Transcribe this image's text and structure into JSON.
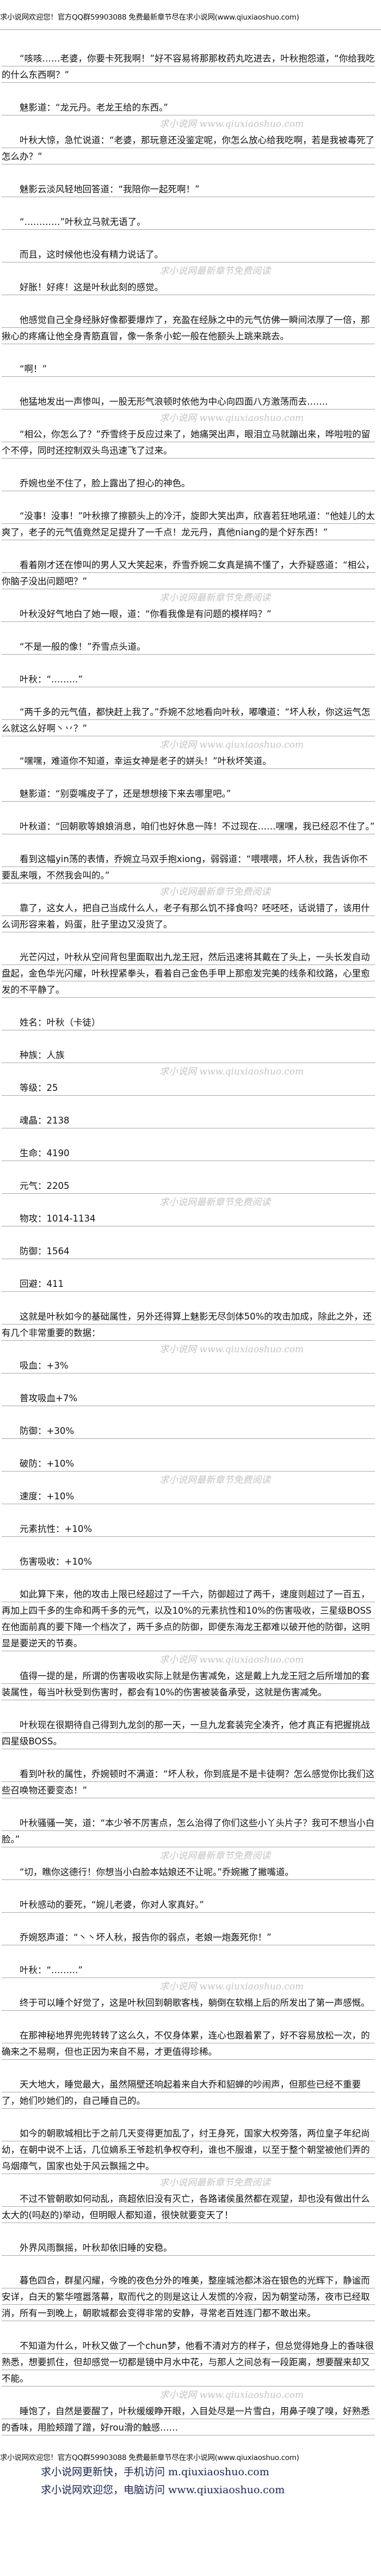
{
  "banner": "求小说网欢迎您！官方QQ群59903088 免费最新章节尽在求小说网(www.qiuxiaoshuo.com)",
  "watermarks": [
    "求小说网 www.qiuxiaoshuo.com",
    "求小说网最新章节免费阅读"
  ],
  "body": {
    "paragraphs": [
      "“咳咳……老婆，你要卡死我啊！”好不容易将那那枚药丸吃进去，叶秋抱怨道，“你给我吃的什么东西啊？”",
      "魅影道：“龙元丹。老龙王给的东西。”",
      "叶秋大惊，急忙说道：“老婆，那玩意还没鉴定呢，你怎么放心给我吃啊，若是我被毒死了怎么办？”",
      "魅影云淡风轻地回答道：“我陪你一起死啊！”",
      "“…………”叶秋立马就无语了。",
      "而且，这时候他也没有精力说话了。",
      "好胀！好疼！这是叶秋此刻的感觉。",
      "他感觉自己全身经脉好像都要爆炸了，充盈在经脉之中的元气仿佛一瞬间浓厚了一倍，那揪心的疼痛让他全身青筋直冒，像一条条小蛇一般在他额头上跳来跳去。",
      "“啊！”",
      "他猛地发出一声惨叫，一股无形气浪顿时依他为中心向四面八方激荡而去…….",
      "“相公，你怎么了？”乔雪终于反应过来了，她痛哭出声，眼泪立马就蹦出来，哗啦啦的留个不停，同时还控制双头鸟迅速飞了过来。",
      "乔婉也坐不住了，脸上露出了担心的神色。",
      "“没事！没事！”叶秋擦了擦额头上的冷汗，旋即大笑出声，欣喜若狂地吼道：“他娃儿的太爽了，老子的元气值竟然足足提升了一千点！龙元丹，真他niang的是个好东西！”",
      "看着刚才还在惨叫的男人又大笑起来，乔雪乔婉二女真是搞不懂了，大乔疑惑道：“相公，你脑子没出问题吧？”",
      "叶秋没好气地白了她一眼，道：“你看我像是有问题的模样吗？”",
      "“不是一般的像！”乔雪点头道。",
      "叶秋：“………”",
      "“两千多的元气值，都快赶上我了。”乔婉不忿地看向叶秋，嘟囔道：“坏人秋，你这运气怎么就这么好啊丶丷？”",
      "“嘿嘿，难道你不知道，幸运女神是老子的姘头！”叶秋坏笑道。",
      "魅影道：“别耍嘴皮子了，还是想想接下来去哪里吧。”",
      "叶秋道：“回朝歌等娘娘消息，咱们也好休息一阵！不过现在……嘿嘿，我已经忍不住了。”",
      "看到这幅yin荡的表情，乔婉立马双手抱xiong，弱弱道：“喂喂喂，坏人秋，我告诉你不要乱来哦，不然我会叫的。”",
      "靠了，这女人，把自己当成什么人，老子有那么饥不择食吗？呸呸呸，话说错了，该用什么词形容来着，妈蛋，肚子里边又没货了。",
      "光芒闪过，叶秋从空间背包里面取出九龙王冠，然后迅速将其戴在了头上，一头长发自动盘起，金色华光闪耀，叶秋捏紧拳头，看着自己金色手甲上那愈发完美的线条和纹路，心里愈发的不平静了。",
      "姓名：叶秋（卡徒）",
      "种族：人族",
      "等级：25",
      "魂晶：2138",
      "生命：4190",
      "元气：2205",
      "物攻：1014-1134",
      "防御：1564",
      "回避：411",
      "这就是叶秋如今的基础属性，另外还得算上魅影无尽剑体50%的攻击加成，除此之外，还有几个非常重要的数据：",
      "吸血：+3%",
      "普攻吸血+7%",
      "防御：+30%",
      "破防：+10%",
      "速度：+10%",
      "元素抗性：+10%",
      "伤害吸收：+10%",
      "如此算下来，他的攻击上限已经超过了一千六，防御超过了两千，速度则超过了一百五，再加上四千多的生命和两千多的元气，以及10%的元素抗性和10%的伤害吸收，三星级BOSS在他面前真的要下降一个档次了，两千多点的防御，即便东海龙王都难以破开他的防御，这明显是要逆天的节奏。",
      "值得一提的是，所谓的伤害吸收实际上就是伤害减免，这是戴上九龙王冠之后所增加的套装属性，每当叶秋受到伤害时，都会有10%的伤害被装备承受，这就是伤害减免。",
      "叶秋现在很期待自己得到九龙剑的那一天，一旦九龙套装完全凑齐，他才真正有把握挑战四星级BOSS。",
      "看到叶秋的属性，乔婉顿时不满道：“坏人秋，你到底是不是卡徒啊？怎么感觉你比我们这些召唤物还要变态！”",
      "叶秋骚骚一笑，道：“本少爷不厉害点，怎么治得了你们这些小丫头片子？我可不想当小白脸。”",
      "“切，瞧你这德行！你想当小白脸本姑娘还不让呢。”乔婉撇了撇嘴道。",
      "叶秋感动的要死，“婉儿老婆，你对人家真好。”",
      "乔婉怒声道：“丶丶坏人秋，报告你的弱点，老娘一炮轰死你！”",
      "叶秋：“………”",
      "终于可以睡个好觉了，这是叶秋回到朝歌客栈，躺倒在软榻上后的所发出了第一声感慨。",
      "在那神秘地界兜兜转转了这么久，不仅身体累，连心也跟着累了，好不容易放松一次，的确来之不易啊，但也正因为来自不易，才更值得珍稀。",
      "天大地大，睡觉最大，虽然隔壁还响起着来自大乔和貂蝉的吵闹声，但那些已经不重要了，她们吵她们的，自己睡自己的。",
      "如今的朝歌城相比于之前几天变得更加乱了，纣王身死，国家大权旁落，两位皇子年纪尚幼，在朝中说不上话，几位嫡系王爷趁机争权夺利，谁也不服谁，以至于整个朝堂被他们弄的乌烟瘴气，国家也处于风云飘摇之中。",
      "不过不管朝歌如何动乱，商超依旧没有灭亡，各路诸侯虽然都在观望，却也没有做出什么太大的(吗赵的)举动，但明眼人都知道，很快就要变天了！",
      "外界风雨飘摇，叶秋却依旧睡的安稳。",
      "暮色四合，群星闪耀，今晚的夜色分外的唯美，整座城池都沐浴在银色的光辉下，静谧而安详，白天的繁华喧嚣落幕，取而代之的则是这让人发慌的冷寂，因为朝堂动荡，夜市已经取消，所有一到晚上，朝歌城都会变得非常的安静，寻常老百姓连门都不敢出来。",
      "不知道为什么，叶秋又做了一个chun梦，他看不清对方的样子，但总觉得她身上的香味很熟悉，想要抓住，但却感觉一切都是镜中月水中花，与那人之间总有一段距离，想要醒来却又不能。",
      "睡饱了，自然是要醒了，叶秋缓缓睁开眼，入目处尽是一片雪白，用鼻子嗅了嗅，好熟悉的香味，用脸颊蹭了蹭，好rou滑的触感……"
    ]
  },
  "footer": {
    "mobile": "求小说网更新快，手机访问 m.qiuxiaoshuo.com",
    "desktop": "求小说网欢迎您，电脑访问 www.qiuxiaoshuo.com"
  }
}
